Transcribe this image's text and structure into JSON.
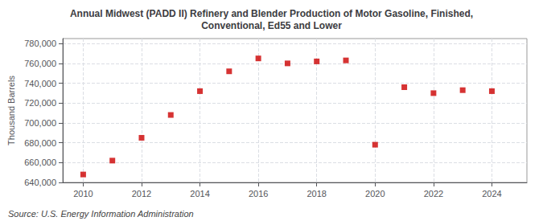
{
  "chart_data": {
    "type": "scatter",
    "title": "Annual Midwest (PADD II) Refinery and Blender Production of Motor Gasoline, Finished,\nConventional, Ed55 and Lower",
    "ylabel": "Thousand Barrels",
    "source": "Source: U.S. Energy Information Administration",
    "x": [
      2010,
      2011,
      2012,
      2013,
      2014,
      2015,
      2016,
      2017,
      2018,
      2019,
      2020,
      2021,
      2022,
      2023,
      2024
    ],
    "values": [
      648000,
      662000,
      685000,
      708000,
      732000,
      752000,
      765000,
      760000,
      762000,
      763000,
      678000,
      736000,
      730000,
      733000,
      732000
    ],
    "color": "#CC0000",
    "marker": "square",
    "xlim": [
      2009.3,
      2025.2
    ],
    "xticks": [
      2010,
      2012,
      2014,
      2016,
      2018,
      2020,
      2022,
      2024
    ],
    "ylim": [
      640000,
      785000
    ],
    "yticks": [
      {
        "value": 640000,
        "label": "640,000"
      },
      {
        "value": 660000,
        "label": "660,000"
      },
      {
        "value": 680000,
        "label": "680,000"
      },
      {
        "value": 700000,
        "label": "700,000"
      },
      {
        "value": 720000,
        "label": "720,000"
      },
      {
        "value": 740000,
        "label": "740,000"
      },
      {
        "value": 760000,
        "label": "760,000"
      },
      {
        "value": 780000,
        "label": "780,000"
      }
    ],
    "grid": true
  }
}
